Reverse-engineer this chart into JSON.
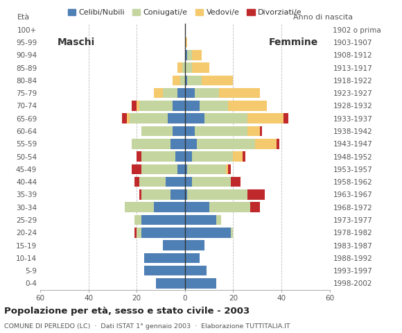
{
  "age_groups": [
    "0-4",
    "5-9",
    "10-14",
    "15-19",
    "20-24",
    "25-29",
    "30-34",
    "35-39",
    "40-44",
    "45-49",
    "50-54",
    "55-59",
    "60-64",
    "65-69",
    "70-74",
    "75-79",
    "80-84",
    "85-89",
    "90-94",
    "95-99",
    "100+"
  ],
  "birth_years": [
    "1998-2002",
    "1993-1997",
    "1988-1992",
    "1983-1987",
    "1978-1982",
    "1973-1977",
    "1968-1972",
    "1963-1967",
    "1958-1962",
    "1953-1957",
    "1948-1952",
    "1943-1947",
    "1938-1942",
    "1933-1937",
    "1928-1932",
    "1923-1927",
    "1918-1922",
    "1913-1917",
    "1908-1912",
    "1903-1907",
    "1902 o prima"
  ],
  "colors": {
    "celibinubili": "#4e7fb5",
    "coniugati": "#c5d5a0",
    "vedovi": "#f5c96e",
    "divorziati": "#c0292b"
  },
  "males": {
    "celibinubili": [
      12,
      17,
      17,
      9,
      18,
      18,
      13,
      6,
      8,
      3,
      4,
      6,
      5,
      7,
      5,
      3,
      0,
      0,
      0,
      0,
      0
    ],
    "coniugati": [
      0,
      0,
      0,
      0,
      2,
      3,
      12,
      12,
      11,
      15,
      14,
      16,
      13,
      16,
      14,
      6,
      2,
      1,
      0,
      0,
      0
    ],
    "vedovi": [
      0,
      0,
      0,
      0,
      0,
      0,
      0,
      0,
      0,
      0,
      0,
      0,
      0,
      1,
      1,
      4,
      3,
      2,
      0,
      0,
      0
    ],
    "divorziati": [
      0,
      0,
      0,
      0,
      1,
      0,
      0,
      1,
      2,
      4,
      2,
      0,
      0,
      2,
      2,
      0,
      0,
      0,
      0,
      0,
      0
    ]
  },
  "females": {
    "celibinubili": [
      13,
      9,
      6,
      8,
      19,
      13,
      10,
      1,
      3,
      1,
      3,
      5,
      4,
      8,
      6,
      4,
      1,
      0,
      1,
      0,
      0
    ],
    "coniugati": [
      0,
      0,
      0,
      0,
      1,
      2,
      17,
      25,
      16,
      16,
      17,
      24,
      22,
      18,
      12,
      10,
      6,
      3,
      2,
      0,
      0
    ],
    "vedovi": [
      0,
      0,
      0,
      0,
      0,
      0,
      0,
      0,
      0,
      1,
      4,
      9,
      5,
      15,
      16,
      17,
      13,
      7,
      4,
      1,
      0
    ],
    "divorziati": [
      0,
      0,
      0,
      0,
      0,
      0,
      4,
      7,
      4,
      1,
      1,
      1,
      1,
      2,
      0,
      0,
      0,
      0,
      0,
      0,
      0
    ]
  },
  "xlim": 60,
  "title": "Popolazione per età, sesso e stato civile - 2003",
  "subtitle": "COMUNE DI PERLEDO (LC)  ·  Dati ISTAT 1° gennaio 2003  ·  Elaborazione TUTTITALIA.IT",
  "legend_labels": [
    "Celibi/Nubili",
    "Coniugati/e",
    "Vedovi/e",
    "Divorziati/e"
  ],
  "bg_color": "#ffffff",
  "grid_color": "#bbbbbb"
}
